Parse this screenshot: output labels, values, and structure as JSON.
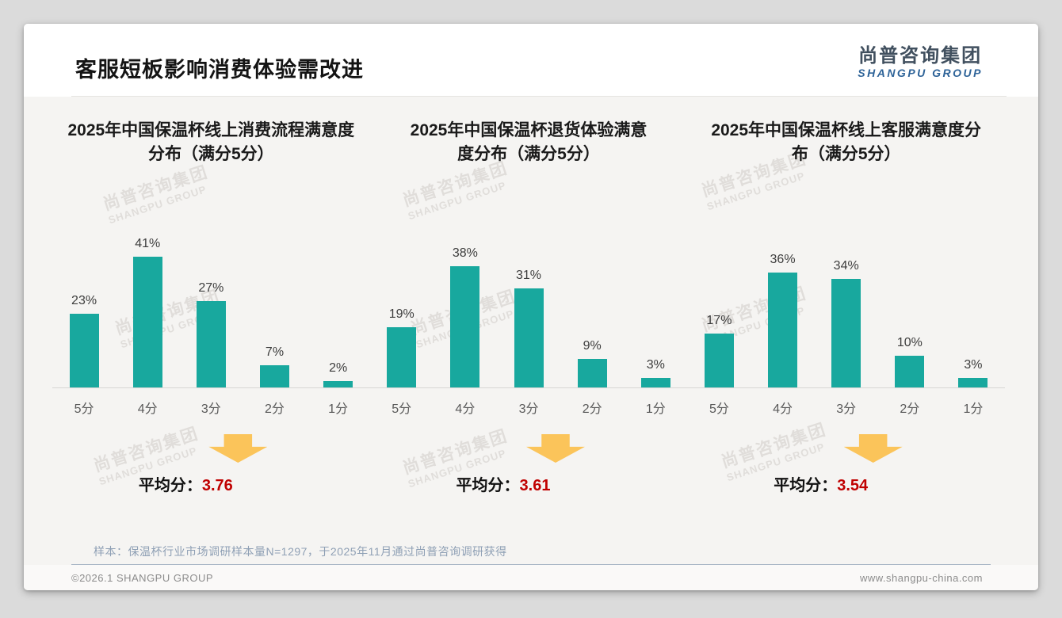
{
  "page": {
    "title": "客服短板影响消费体验需改进",
    "logo": {
      "cn": "尚普咨询集团",
      "en": "SHANGPU GROUP"
    },
    "watermark": {
      "cn": "尚普咨询集团",
      "en": "SHANGPU GROUP"
    },
    "footnote": "样本：保温杯行业市场调研样本量N=1297，于2025年11月通过尚普咨询调研获得",
    "footer": {
      "left": "©2026.1 SHANGPU GROUP",
      "right": "www.shangpu-china.com"
    }
  },
  "colors": {
    "bar": "#18a89e",
    "arrow": "#fbc45a",
    "avg_value": "#c00000"
  },
  "chart_data": [
    {
      "type": "bar",
      "title": "2025年中国保温杯线上消费流程满意度分布（满分5分）",
      "categories": [
        "5分",
        "4分",
        "3分",
        "2分",
        "1分"
      ],
      "values": [
        23,
        41,
        27,
        7,
        2
      ],
      "unit": "%",
      "ylim": [
        0,
        45
      ],
      "grid": false,
      "data_labels": true,
      "average_label": "平均分：",
      "average": "3.76"
    },
    {
      "type": "bar",
      "title": "2025年中国保温杯退货体验满意度分布（满分5分）",
      "categories": [
        "5分",
        "4分",
        "3分",
        "2分",
        "1分"
      ],
      "values": [
        19,
        38,
        31,
        9,
        3
      ],
      "unit": "%",
      "ylim": [
        0,
        45
      ],
      "grid": false,
      "data_labels": true,
      "average_label": "平均分：",
      "average": "3.61"
    },
    {
      "type": "bar",
      "title": "2025年中国保温杯线上客服满意度分布（满分5分）",
      "categories": [
        "5分",
        "4分",
        "3分",
        "2分",
        "1分"
      ],
      "values": [
        17,
        36,
        34,
        10,
        3
      ],
      "unit": "%",
      "ylim": [
        0,
        45
      ],
      "grid": false,
      "data_labels": true,
      "average_label": "平均分：",
      "average": "3.54"
    }
  ]
}
